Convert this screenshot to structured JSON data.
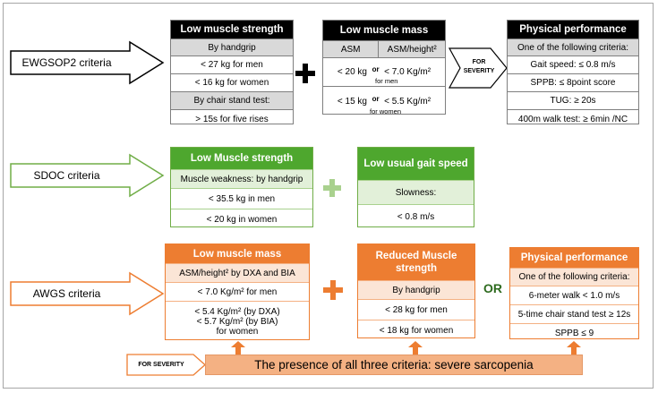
{
  "ewgsop2": {
    "label": "EWGSOP2 criteria",
    "strength": {
      "title": "Low muscle strength",
      "rows": [
        "By handgrip",
        "< 27 kg for men",
        "< 16 kg  for women",
        "By chair stand test:",
        "> 15s for five rises"
      ]
    },
    "mass": {
      "title": "Low muscle mass",
      "col1": "ASM",
      "col2": "ASM/height²",
      "men_a": "< 20 kg",
      "men_or": "or",
      "men_b": "< 7.0 Kg/m²",
      "men_sub": "for men",
      "women_a": "< 15 kg",
      "women_or": "or",
      "women_b": "< 5.5 Kg/m²",
      "women_sub": "for women"
    },
    "severity": "FOR SEVERITY",
    "performance": {
      "title": "Physical performance",
      "rows": [
        "One of the following criteria:",
        "Gait speed: ≤ 0.8 m/s",
        "SPPB: ≤ 8point score",
        "TUG: ≥ 20s",
        "400m walk test: ≥ 6min /NC"
      ]
    }
  },
  "sdoc": {
    "label": "SDOC criteria",
    "strength": {
      "title": "Low Muscle strength",
      "rows": [
        "Muscle weakness: by handgrip",
        "< 35.5 kg in men",
        "< 20 kg in women"
      ]
    },
    "gait": {
      "title": "Low usual gait speed",
      "rows": [
        "Slowness:",
        "< 0.8 m/s"
      ]
    }
  },
  "awgs": {
    "label": "AWGS criteria",
    "mass": {
      "title": "Low muscle mass",
      "rows": [
        "ASM/height² by DXA and BIA",
        "< 7.0 Kg/m² for men"
      ],
      "women_1": "< 5.4 Kg/m² (by DXA)",
      "women_2": "< 5.7 Kg/m² (by BIA)",
      "women_3": "for women"
    },
    "strength": {
      "title_1": "Reduced Muscle",
      "title_2": "strength",
      "rows": [
        "By handgrip",
        "< 28 kg for men",
        "< 18 kg  for women"
      ]
    },
    "or_label": "OR",
    "performance": {
      "title": "Physical performance",
      "rows": [
        "One of the following criteria:",
        "6-meter walk < 1.0 m/s",
        "5-time chair stand test ≥ 12s",
        "SPPB ≤ 9"
      ]
    },
    "severity": "FOR SEVERITY",
    "banner": "The presence of all three criteria: severe sarcopenia"
  },
  "colors": {
    "black": "#000000",
    "green": "#4ea72e",
    "orange": "#ed7d31",
    "light_orange": "#f4b183"
  }
}
